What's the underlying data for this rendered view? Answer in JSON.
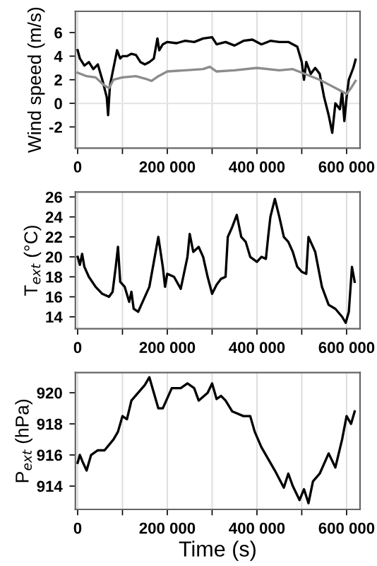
{
  "chart_data": [
    {
      "type": "line",
      "ylabel": "Wind speed (m/s)",
      "xlim": [
        -5000,
        630000
      ],
      "ylim": [
        -3.8,
        7.8
      ],
      "yticks": [
        -2,
        0,
        2,
        4,
        6
      ],
      "xticks": [
        0,
        {
          "value": 100000,
          "label": null
        },
        {
          "value": 200000,
          "label": "200 000"
        },
        {
          "value": 300000,
          "label": null
        },
        {
          "value": 400000,
          "label": "400 000"
        },
        {
          "value": 500000,
          "label": null
        },
        {
          "value": 600000,
          "label": "600 000"
        }
      ],
      "grid": "x",
      "ref_lines": [
        {
          "axis": "y",
          "value": 0,
          "color": "#e6e6e6"
        }
      ],
      "series": [
        {
          "color": "#000000",
          "x": [
            0,
            5000,
            15000,
            25000,
            35000,
            45000,
            55000,
            65000,
            68000,
            72000,
            80000,
            88000,
            95000,
            100000,
            110000,
            120000,
            130000,
            140000,
            150000,
            160000,
            170000,
            178000,
            182000,
            190000,
            200000,
            220000,
            240000,
            260000,
            280000,
            300000,
            310000,
            330000,
            350000,
            370000,
            390000,
            410000,
            430000,
            450000,
            470000,
            490000,
            500000,
            505000,
            510000,
            520000,
            530000,
            540000,
            550000,
            560000,
            568000,
            575000,
            585000,
            590000,
            595000,
            600000,
            605000,
            615000,
            620000
          ],
          "values": [
            4.5,
            3.8,
            3.2,
            3.5,
            2.9,
            3.3,
            2.0,
            0.5,
            -1.0,
            1.5,
            3.0,
            4.5,
            3.8,
            4.0,
            4.0,
            4.2,
            4.1,
            3.5,
            3.3,
            3.5,
            3.8,
            5.5,
            4.5,
            5.0,
            5.2,
            5.1,
            5.3,
            5.2,
            5.5,
            5.6,
            5.0,
            5.2,
            4.9,
            5.3,
            5.4,
            5.0,
            5.3,
            5.2,
            5.2,
            4.8,
            3.5,
            2.0,
            3.5,
            2.5,
            3.0,
            2.5,
            0.5,
            -1.0,
            -2.5,
            0.0,
            -0.5,
            1.0,
            -1.5,
            0.5,
            2.0,
            3.0,
            3.7
          ]
        },
        {
          "color": "#8c8c8c",
          "x": [
            0,
            20000,
            40000,
            60000,
            70000,
            80000,
            100000,
            130000,
            150000,
            165000,
            180000,
            200000,
            240000,
            280000,
            295000,
            310000,
            350000,
            400000,
            450000,
            480000,
            500000,
            520000,
            540000,
            560000,
            580000,
            600000,
            610000,
            620000
          ],
          "values": [
            2.6,
            2.3,
            2.2,
            1.5,
            1.3,
            2.0,
            2.2,
            2.3,
            2.1,
            1.9,
            2.3,
            2.7,
            2.8,
            2.9,
            3.1,
            2.7,
            2.8,
            3.0,
            2.8,
            2.9,
            2.6,
            2.3,
            2.0,
            1.6,
            1.2,
            0.8,
            1.3,
            1.9
          ]
        }
      ]
    },
    {
      "type": "line",
      "ylabel": "T$_{ext}$ (°C)",
      "xlim": [
        -5000,
        630000
      ],
      "ylim": [
        12.8,
        26.5
      ],
      "yticks": [
        14,
        16,
        18,
        20,
        22,
        24,
        26
      ],
      "xticks": [
        0,
        {
          "value": 100000,
          "label": null
        },
        {
          "value": 200000,
          "label": "200 000"
        },
        {
          "value": 300000,
          "label": null
        },
        {
          "value": 400000,
          "label": "400 000"
        },
        {
          "value": 500000,
          "label": null
        },
        {
          "value": 600000,
          "label": "600 000"
        }
      ],
      "grid": "x",
      "series": [
        {
          "color": "#000000",
          "x": [
            0,
            5000,
            10000,
            15000,
            25000,
            40000,
            55000,
            70000,
            78000,
            85000,
            90000,
            95000,
            105000,
            115000,
            120000,
            125000,
            135000,
            145000,
            160000,
            170000,
            180000,
            190000,
            195000,
            200000,
            215000,
            230000,
            245000,
            250000,
            258000,
            270000,
            280000,
            290000,
            300000,
            310000,
            320000,
            330000,
            335000,
            345000,
            355000,
            365000,
            375000,
            385000,
            400000,
            410000,
            420000,
            425000,
            430000,
            440000,
            450000,
            460000,
            470000,
            480000,
            490000,
            500000,
            510000,
            515000,
            520000,
            530000,
            545000,
            560000,
            575000,
            590000,
            598000,
            605000,
            612000,
            618000
          ],
          "values": [
            20,
            19.2,
            20.3,
            19,
            18,
            17,
            16.3,
            16,
            16.5,
            19,
            21,
            17.5,
            17,
            15.5,
            16.5,
            14.8,
            14.5,
            15.5,
            17,
            19.5,
            22,
            19,
            17,
            18.3,
            18,
            16.8,
            20,
            22.3,
            20.5,
            21,
            20,
            18,
            16.3,
            17.2,
            17.8,
            18,
            22,
            23,
            24.2,
            22,
            21.5,
            20,
            19.5,
            20,
            19.8,
            22,
            24,
            25.8,
            24,
            22,
            21.5,
            20.5,
            19,
            18.5,
            18.3,
            22,
            21.5,
            20.5,
            17,
            15.2,
            14.8,
            14,
            13.4,
            14.5,
            19,
            17.5
          ]
        }
      ]
    },
    {
      "type": "line",
      "ylabel": "P$_{ext}$ (hPa)",
      "xlabel": "Time (s)",
      "xlim": [
        -5000,
        630000
      ],
      "ylim": [
        912.5,
        921.3
      ],
      "yticks": [
        914,
        916,
        918,
        920
      ],
      "xticks": [
        0,
        {
          "value": 100000,
          "label": null
        },
        {
          "value": 200000,
          "label": "200 000"
        },
        {
          "value": 300000,
          "label": null
        },
        {
          "value": 400000,
          "label": "400 000"
        },
        {
          "value": 500000,
          "label": null
        },
        {
          "value": 600000,
          "label": "600 000"
        }
      ],
      "grid": "x",
      "series": [
        {
          "color": "#000000",
          "x": [
            0,
            5000,
            12000,
            20000,
            30000,
            45000,
            60000,
            80000,
            90000,
            100000,
            110000,
            120000,
            135000,
            150000,
            160000,
            170000,
            180000,
            190000,
            210000,
            230000,
            245000,
            260000,
            270000,
            290000,
            300000,
            310000,
            320000,
            330000,
            345000,
            370000,
            385000,
            395000,
            410000,
            420000,
            440000,
            460000,
            470000,
            480000,
            495000,
            505000,
            515000,
            525000,
            540000,
            560000,
            575000,
            590000,
            600000,
            610000,
            618000
          ],
          "values": [
            915.5,
            916,
            915.5,
            915,
            916,
            916.3,
            916.3,
            917,
            917.5,
            918.5,
            918.3,
            919.5,
            920,
            920.5,
            921,
            920,
            919,
            919,
            920.3,
            920.3,
            920.6,
            920.3,
            919.5,
            920,
            920.6,
            919.6,
            919.8,
            919.5,
            918.8,
            918.5,
            918.5,
            917.5,
            916.5,
            916,
            915,
            913.9,
            914.8,
            914,
            913.1,
            913.8,
            912.9,
            914.3,
            914.8,
            916.1,
            915.2,
            917,
            918.5,
            918,
            918.8
          ]
        }
      ]
    }
  ]
}
